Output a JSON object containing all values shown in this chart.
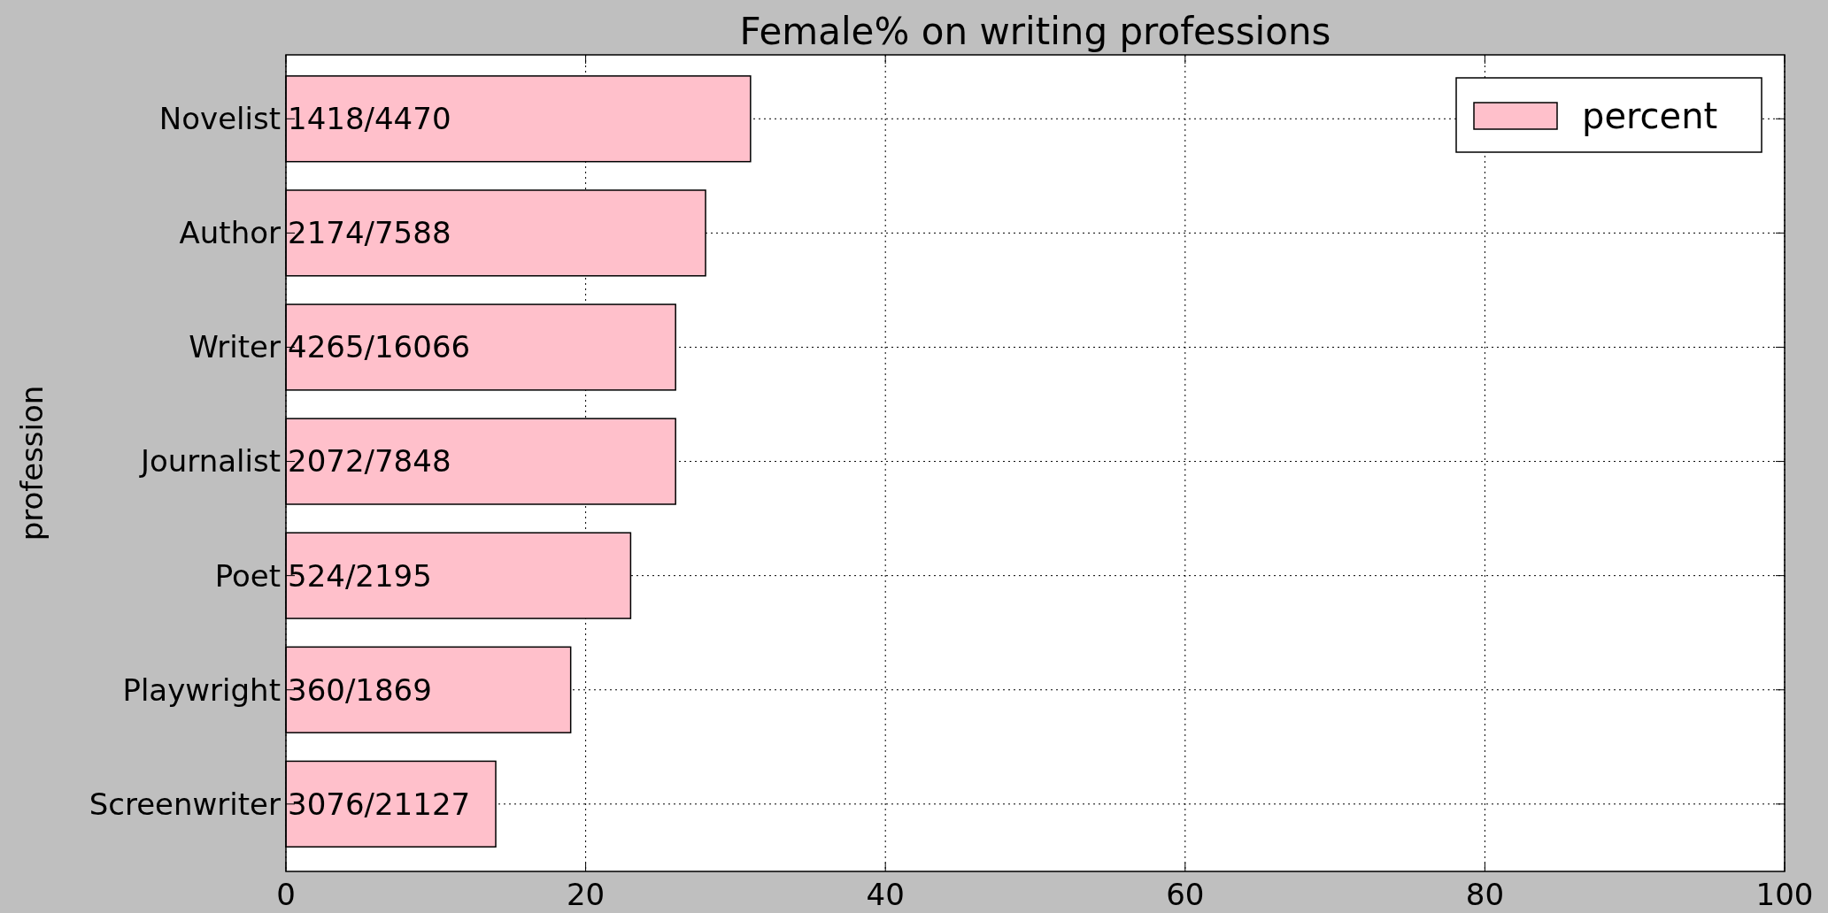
{
  "chart_data": {
    "type": "bar",
    "orientation": "horizontal",
    "title": "Female% on writing professions",
    "ylabel": "profession",
    "categories": [
      "Novelist",
      "Author",
      "Writer",
      "Journalist",
      "Poet",
      "Playwright",
      "Screenwriter"
    ],
    "series": [
      {
        "name": "percent",
        "color": "#ffc0cb",
        "values": [
          31,
          28,
          26,
          26,
          23,
          19,
          14
        ],
        "value_labels": [
          "1418/4470",
          "2174/7588",
          "4265/16066",
          "2072/7848",
          "524/2195",
          "360/1869",
          "3076/21127"
        ]
      }
    ],
    "xlim": [
      0,
      100
    ],
    "xticks": [
      0,
      20,
      40,
      60,
      80,
      100
    ],
    "grid": true,
    "legend": "top right"
  }
}
